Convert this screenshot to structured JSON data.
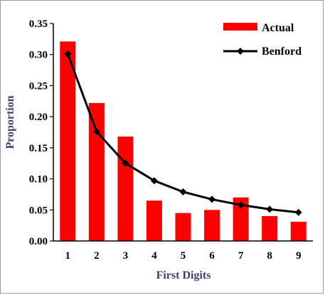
{
  "chart_data": {
    "type": "bar",
    "xlabel": "First Digits",
    "ylabel": "Proportion",
    "categories": [
      "1",
      "2",
      "3",
      "4",
      "5",
      "6",
      "7",
      "8",
      "9"
    ],
    "ylim": [
      0,
      0.35
    ],
    "yticks": [
      "0.00",
      "0.05",
      "0.10",
      "0.15",
      "0.20",
      "0.25",
      "0.30",
      "0.35"
    ],
    "grid": false,
    "legend_position": "top-right",
    "series": [
      {
        "name": "Actual",
        "kind": "bar",
        "color": "#ff0000",
        "values": [
          0.321,
          0.222,
          0.168,
          0.065,
          0.045,
          0.05,
          0.07,
          0.04,
          0.031
        ]
      },
      {
        "name": "Benford",
        "kind": "line",
        "marker": "diamond",
        "color": "#000000",
        "values": [
          0.301,
          0.176,
          0.125,
          0.097,
          0.079,
          0.067,
          0.058,
          0.051,
          0.046
        ]
      }
    ]
  }
}
